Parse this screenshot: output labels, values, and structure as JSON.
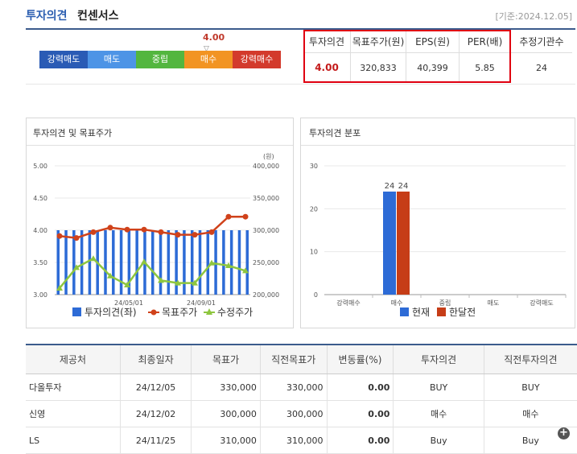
{
  "header": {
    "title": "투자의견",
    "subtitle": "컨센서스",
    "base_date": "[기준:2024.12.05]"
  },
  "opinion": {
    "score_text": "4.00",
    "score_value": 4.0,
    "arrow": "▽",
    "segments": [
      {
        "label": "강력매도",
        "color": "#2a5bb5"
      },
      {
        "label": "매도",
        "color": "#4d94e6"
      },
      {
        "label": "중립",
        "color": "#53b63f"
      },
      {
        "label": "매수",
        "color": "#f29423"
      },
      {
        "label": "강력매수",
        "color": "#d33a2c"
      }
    ]
  },
  "summary": {
    "headers": [
      "투자의견",
      "목표주가(원)",
      "EPS(원)",
      "PER(배)",
      "추정기관수"
    ],
    "values": [
      "4.00",
      "320,833",
      "40,399",
      "5.85",
      "24"
    ]
  },
  "colors": {
    "highlight_box": "#e00010",
    "opinion_value": "#c41a1a",
    "header_accent": "#2a5db0"
  },
  "panels": {
    "left_title": "투자의견 및 목표주가",
    "right_title": "투자의견 분포"
  },
  "chart_data": [
    {
      "type": "bar+line",
      "title": "투자의견 및 목표주가",
      "y_unit_right": "(원)",
      "y_left_ticks": [
        "5.00",
        "4.50",
        "4.00",
        "3.50",
        "3.00"
      ],
      "y_left_range": [
        3.0,
        5.0
      ],
      "y_right_ticks": [
        "400,000",
        "350,000",
        "300,000",
        "250,000",
        "200,000"
      ],
      "y_right_range": [
        200000,
        400000
      ],
      "x_tick_labels": [
        "24/05/01",
        "24/09/01"
      ],
      "legend": [
        "투자의견(좌)",
        "목표주가",
        "수정주가"
      ],
      "series": [
        {
          "name": "투자의견(좌)",
          "color": "#2d6bd6",
          "values": [
            4,
            4,
            4,
            4,
            4,
            4,
            4,
            4,
            4,
            4,
            4,
            4,
            4,
            4,
            4,
            4,
            4,
            4,
            4,
            4,
            4,
            4,
            4,
            4,
            4
          ]
        },
        {
          "name": "목표주가",
          "color": "#d0421b",
          "values": [
            291000,
            288000,
            297000,
            304000,
            301000,
            301000,
            297000,
            293000,
            293000,
            297000,
            321000,
            321000
          ]
        },
        {
          "name": "수정주가",
          "color": "#8ec63f",
          "values": [
            210000,
            242000,
            256000,
            229000,
            215000,
            251000,
            222000,
            218000,
            218000,
            249000,
            245000,
            237000
          ]
        }
      ]
    },
    {
      "type": "bar",
      "title": "투자의견 분포",
      "categories": [
        "강력매수",
        "매수",
        "중립",
        "매도",
        "강력매도"
      ],
      "y_ticks": [
        "30",
        "20",
        "10",
        "0"
      ],
      "ylim": [
        0,
        30
      ],
      "legend": [
        "현재",
        "한달전"
      ],
      "series": [
        {
          "name": "현재",
          "color": "#2d6bd6",
          "values": [
            0,
            24,
            0,
            0,
            0
          ]
        },
        {
          "name": "한달전",
          "color": "#c63d17",
          "values": [
            0,
            24,
            0,
            0,
            0
          ]
        }
      ],
      "data_labels": [
        "24",
        "24"
      ]
    }
  ],
  "table": {
    "headers": [
      "제공처",
      "최종일자",
      "목표가",
      "직전목표가",
      "변동률(%)",
      "투자의견",
      "직전투자의견"
    ],
    "rows": [
      [
        "다올투자",
        "24/12/05",
        "330,000",
        "330,000",
        "0.00",
        "BUY",
        "BUY"
      ],
      [
        "신영",
        "24/12/02",
        "300,000",
        "300,000",
        "0.00",
        "매수",
        "매수"
      ],
      [
        "LS",
        "24/11/25",
        "310,000",
        "310,000",
        "0.00",
        "Buy",
        "Buy"
      ]
    ],
    "more_button": "+"
  }
}
